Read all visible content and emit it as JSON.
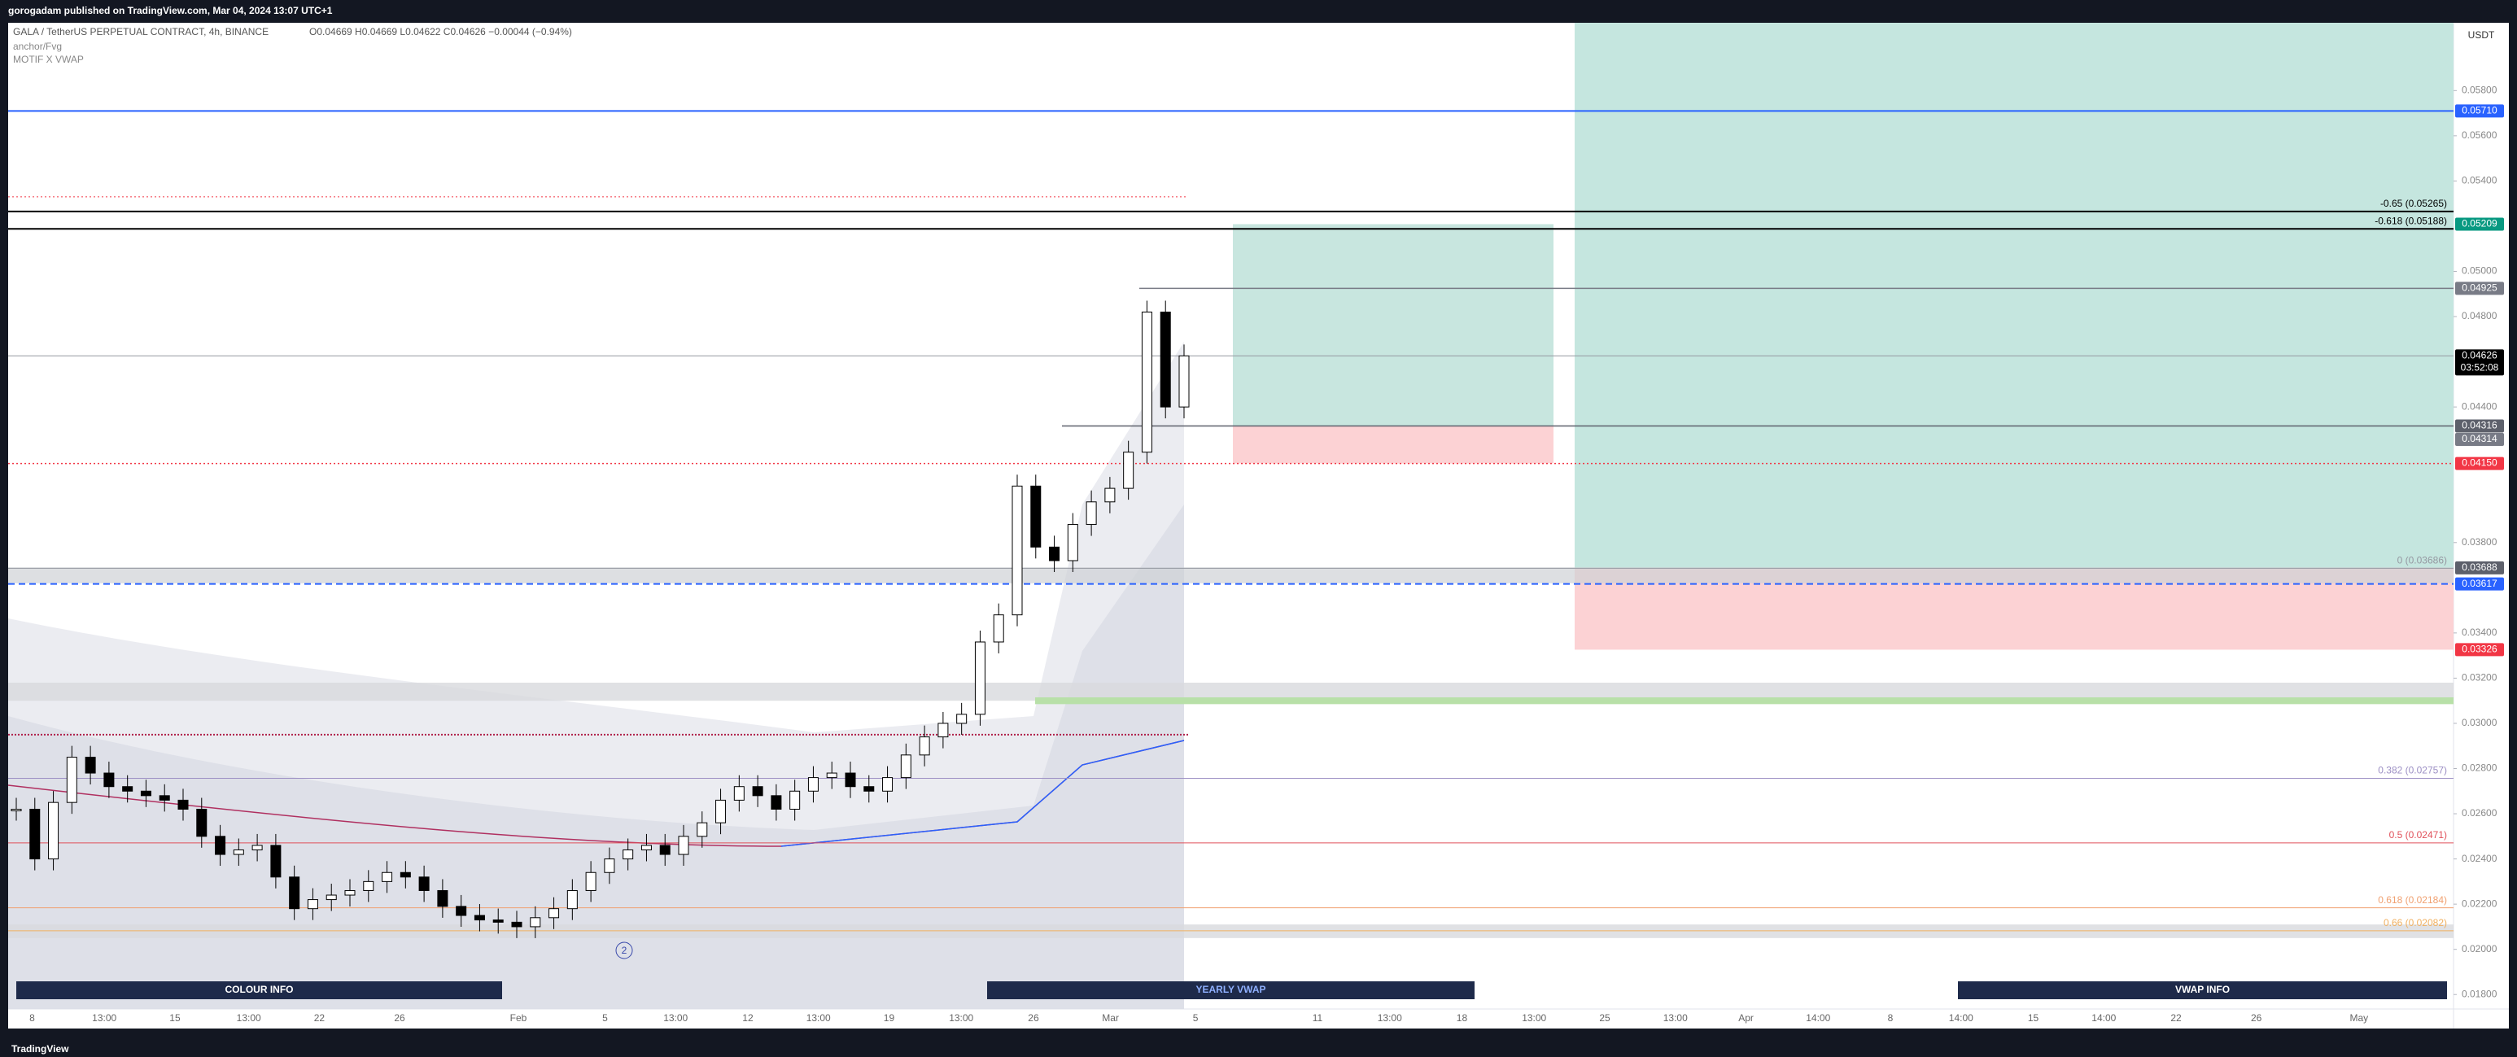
{
  "header": {
    "publisher": "gorogadam published on TradingView.com, Mar 04, 2024 13:07 UTC+1",
    "symbol": "GALA / TetherUS PERPETUAL CONTRACT, 4h, BINANCE",
    "ohlc": "O0.04669 H0.04669 L0.04622 C0.04626 −0.00044 (−0.94%)",
    "indicators": [
      "anchor/Fvg",
      "MOTIF X VWAP"
    ]
  },
  "price_axis": {
    "unit": "USDT",
    "ylim": [
      0.017,
      0.061
    ],
    "ticks": [
      {
        "value": 0.058,
        "label": "0.05800"
      },
      {
        "value": 0.056,
        "label": "0.05600"
      },
      {
        "value": 0.054,
        "label": "0.05400"
      },
      {
        "value": 0.05,
        "label": "0.05000"
      },
      {
        "value": 0.048,
        "label": "0.04800"
      },
      {
        "value": 0.044,
        "label": "0.04400"
      },
      {
        "value": 0.038,
        "label": "0.03800"
      },
      {
        "value": 0.034,
        "label": "0.03400"
      },
      {
        "value": 0.032,
        "label": "0.03200"
      },
      {
        "value": 0.03,
        "label": "0.03000"
      },
      {
        "value": 0.028,
        "label": "0.02800"
      },
      {
        "value": 0.026,
        "label": "0.02600"
      },
      {
        "value": 0.024,
        "label": "0.02400"
      },
      {
        "value": 0.022,
        "label": "0.02200"
      },
      {
        "value": 0.02,
        "label": "0.02000"
      },
      {
        "value": 0.018,
        "label": "0.01800"
      }
    ]
  },
  "price_labels": [
    {
      "value": 0.0571,
      "label": "0.05710",
      "color": "#2962ff"
    },
    {
      "value": 0.05209,
      "label": "0.05209",
      "color": "#089981"
    },
    {
      "value": 0.04925,
      "label": "0.04925",
      "color": "#787b86"
    },
    {
      "value": 0.04626,
      "label": "0.04626",
      "color": "#000000"
    },
    {
      "value": 0.04316,
      "label": "0.04316",
      "color": "#5d606b"
    },
    {
      "value": 0.04314,
      "label": "0.04314",
      "color": "#787b86"
    },
    {
      "value": 0.0415,
      "label": "0.04150",
      "color": "#f23645"
    },
    {
      "value": 0.03688,
      "label": "0.03688",
      "color": "#5d606b"
    },
    {
      "value": 0.03617,
      "label": "0.03617",
      "color": "#2962ff"
    },
    {
      "value": 0.03326,
      "label": "0.03326",
      "color": "#f23645"
    }
  ],
  "countdown": "03:52:08",
  "fib_levels": [
    {
      "label": "-0.65 (0.05265)",
      "value": 0.05265,
      "color": "#000000"
    },
    {
      "label": "-0.618 (0.05188)",
      "value": 0.05188,
      "color": "#000000"
    },
    {
      "label": "0 (0.03686)",
      "value": 0.03686,
      "color": "#9598a1"
    },
    {
      "label": "0.382 (0.02757)",
      "value": 0.02757,
      "color": "#9c8fc4"
    },
    {
      "label": "0.5 (0.02471)",
      "value": 0.02471,
      "color": "#e0505a"
    },
    {
      "label": "0.618 (0.02184)",
      "value": 0.02184,
      "color": "#f0a070"
    },
    {
      "label": "0.66 (0.02082)",
      "value": 0.02082,
      "color": "#f0b060"
    }
  ],
  "candles": {
    "close": [
      0.0262,
      0.024,
      0.0265,
      0.0285,
      0.0278,
      0.0272,
      0.027,
      0.0268,
      0.0266,
      0.0262,
      0.025,
      0.0242,
      0.0244,
      0.0246,
      0.0232,
      0.0218,
      0.0222,
      0.0224,
      0.0226,
      0.023,
      0.0234,
      0.0232,
      0.0226,
      0.0219,
      0.0215,
      0.0213,
      0.0212,
      0.021,
      0.0214,
      0.0218,
      0.0226,
      0.0234,
      0.024,
      0.0244,
      0.0246,
      0.0242,
      0.025,
      0.0256,
      0.0266,
      0.0272,
      0.0268,
      0.0262,
      0.027,
      0.0276,
      0.0278,
      0.0272,
      0.027,
      0.0276,
      0.0286,
      0.0294,
      0.03,
      0.0304,
      0.0336,
      0.0348,
      0.0405,
      0.0378,
      0.0372,
      0.0388,
      0.0398,
      0.0404,
      0.042,
      0.0482,
      0.044,
      0.04626
    ]
  },
  "time_axis": [
    "8",
    "13:00",
    "15",
    "13:00",
    "22",
    "26",
    "Feb",
    "5",
    "13:00",
    "12",
    "13:00",
    "19",
    "13:00",
    "26",
    "Mar",
    "5",
    "11",
    "13:00",
    "18",
    "13:00",
    "25",
    "13:00",
    "Apr",
    "14:00",
    "8",
    "14:00",
    "15",
    "14:00",
    "22",
    "26",
    "May"
  ],
  "buttons": [
    "COLOUR INFO",
    "YEARLY VWAP",
    "VWAP INFO"
  ],
  "marker": "2",
  "footer": "TradingView"
}
